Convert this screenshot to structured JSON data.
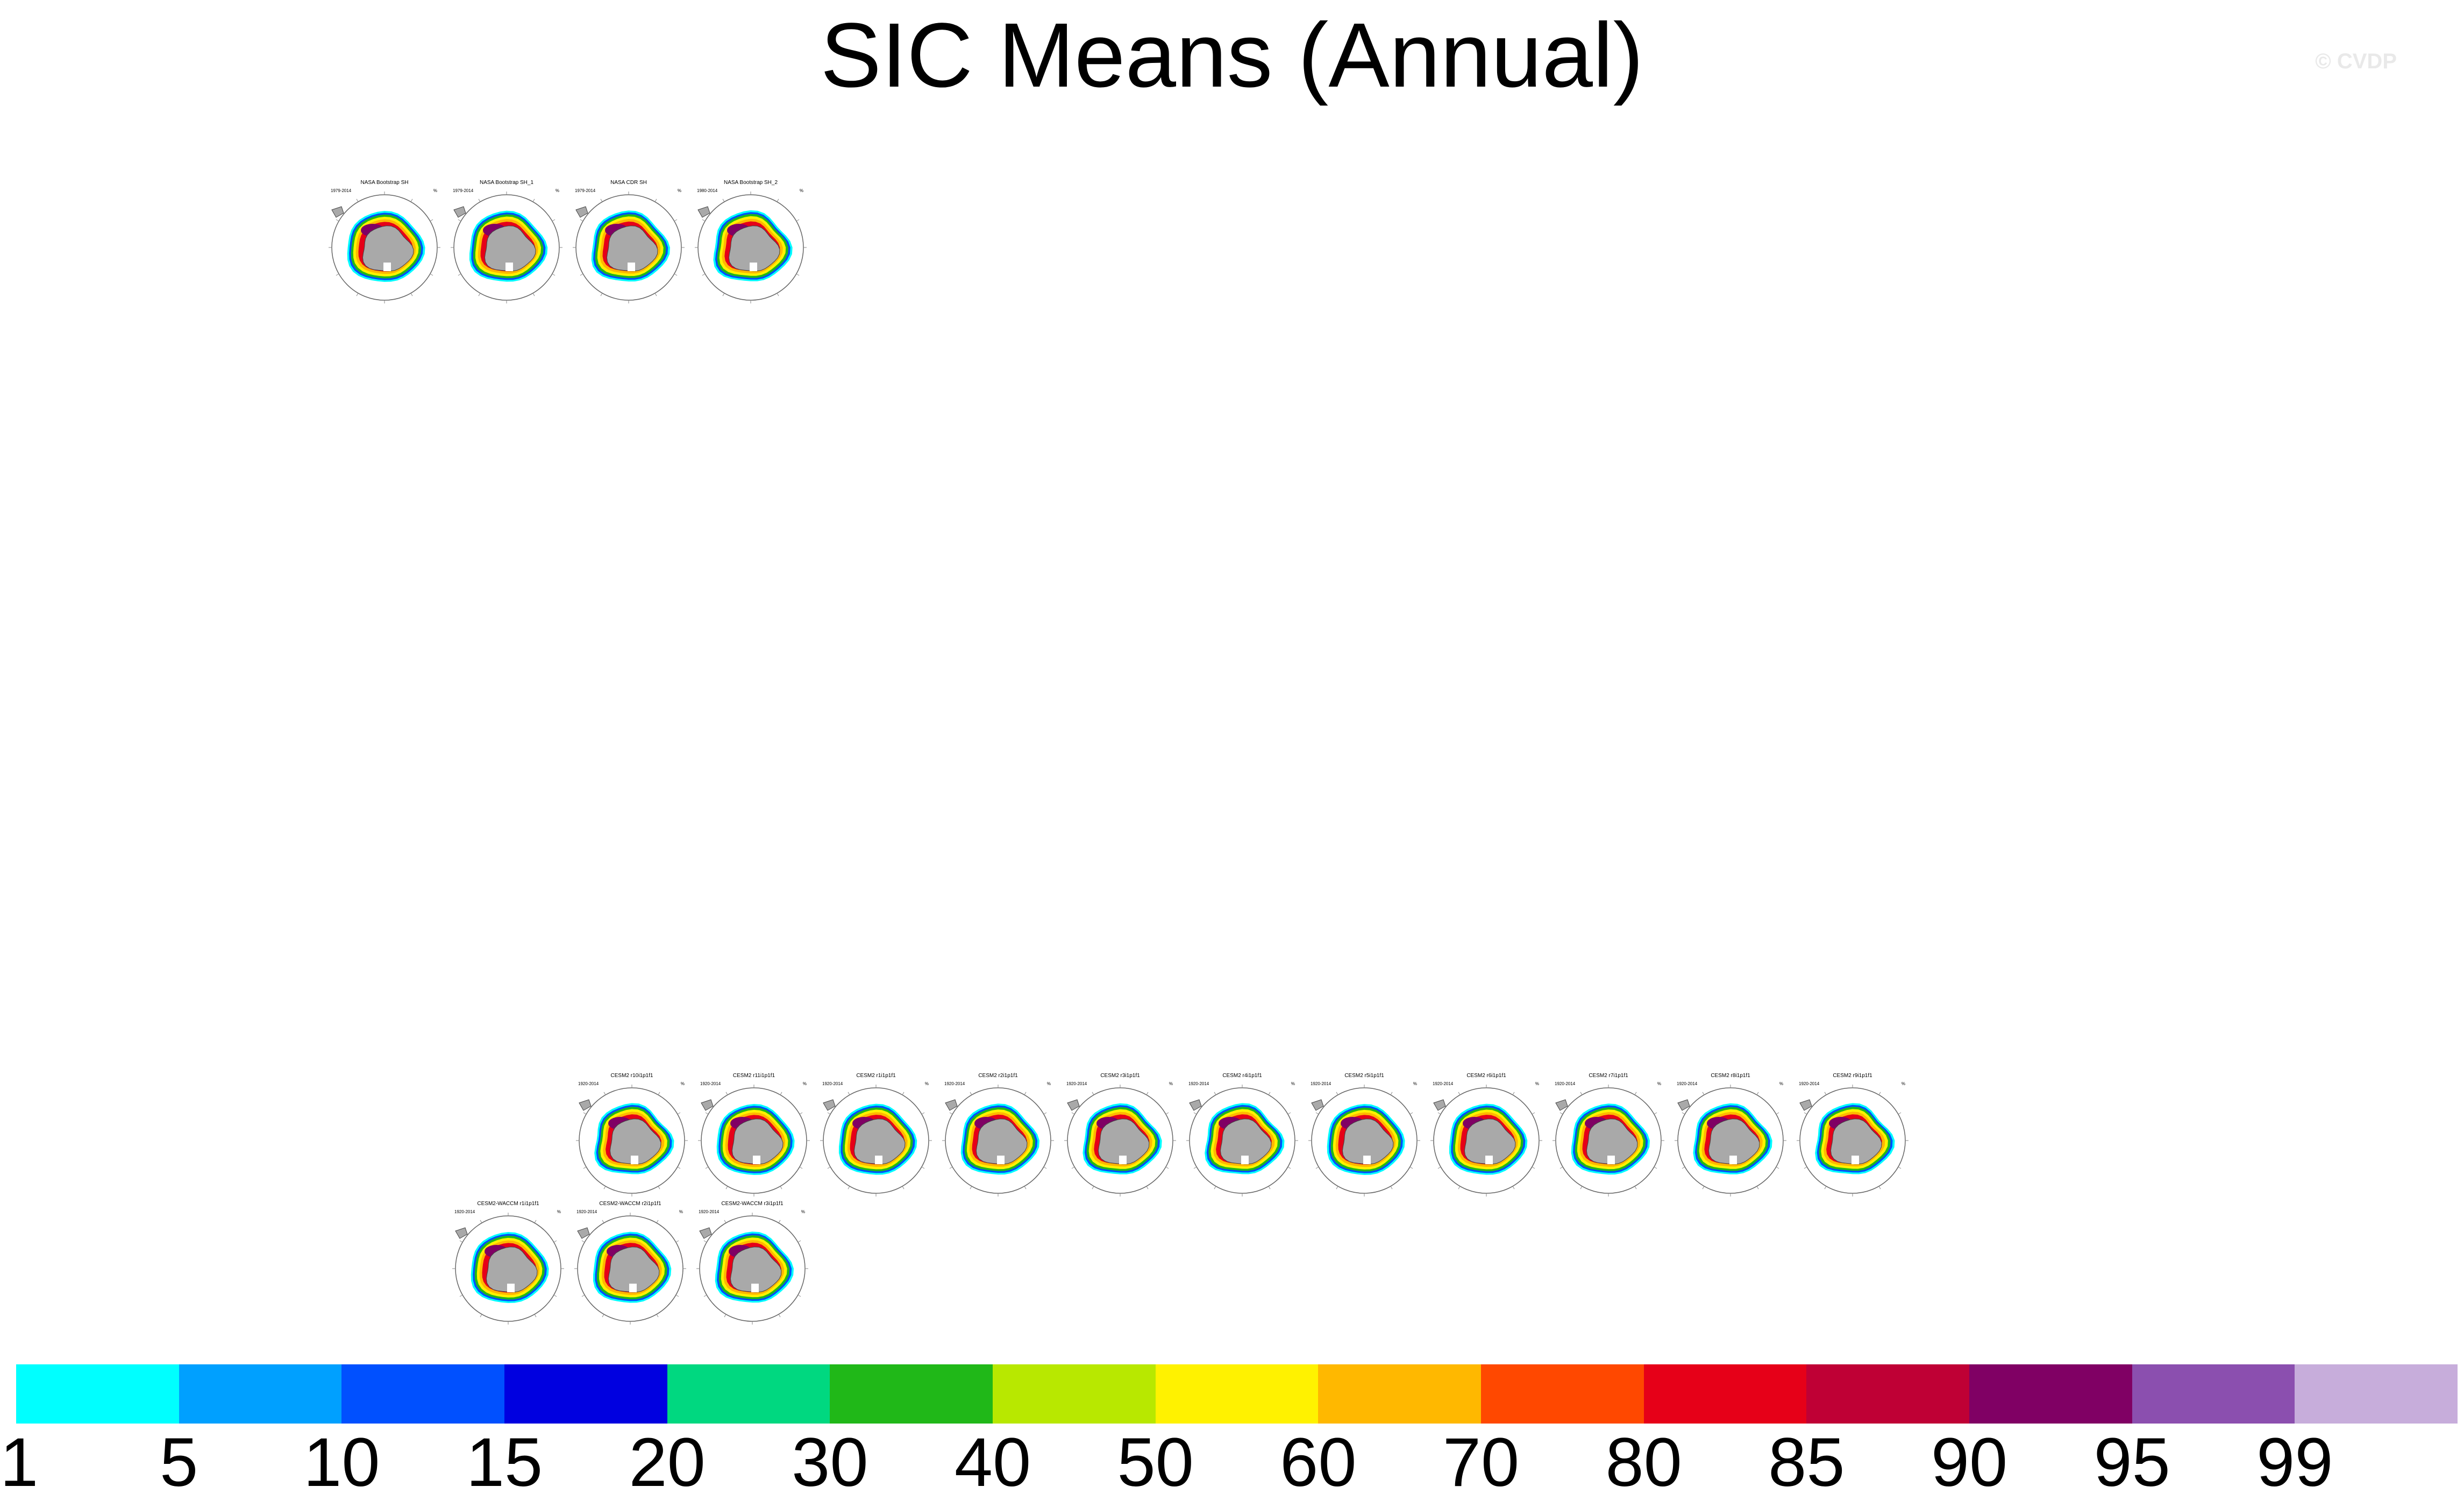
{
  "title": "SIC Means (Annual)",
  "credit": "© CVDP",
  "units": "%",
  "chart_data": {
    "type": "heatmap",
    "title": "SIC Means (Annual)",
    "projection": "south polar stereographic",
    "panels": [
      {
        "name": "NASA Bootstrap SH",
        "period": "1979-2014",
        "row": 0,
        "col": 0
      },
      {
        "name": "NASA Bootstrap SH_1",
        "period": "1979-2014",
        "row": 0,
        "col": 1
      },
      {
        "name": "NASA CDR SH",
        "period": "1979-2014",
        "row": 0,
        "col": 2
      },
      {
        "name": "NASA Bootstrap SH_2",
        "period": "1980-2014",
        "row": 0,
        "col": 3
      },
      {
        "name": "CESM2 r10i1p1f1",
        "period": "1920-2014",
        "row": 1,
        "col": 0
      },
      {
        "name": "CESM2 r11i1p1f1",
        "period": "1920-2014",
        "row": 1,
        "col": 1
      },
      {
        "name": "CESM2 r1i1p1f1",
        "period": "1920-2014",
        "row": 1,
        "col": 2
      },
      {
        "name": "CESM2 r2i1p1f1",
        "period": "1920-2014",
        "row": 1,
        "col": 3
      },
      {
        "name": "CESM2 r3i1p1f1",
        "period": "1920-2014",
        "row": 1,
        "col": 4
      },
      {
        "name": "CESM2 r4i1p1f1",
        "period": "1920-2014",
        "row": 1,
        "col": 5
      },
      {
        "name": "CESM2 r5i1p1f1",
        "period": "1920-2014",
        "row": 1,
        "col": 6
      },
      {
        "name": "CESM2 r6i1p1f1",
        "period": "1920-2014",
        "row": 1,
        "col": 7
      },
      {
        "name": "CESM2 r7i1p1f1",
        "period": "1920-2014",
        "row": 1,
        "col": 8
      },
      {
        "name": "CESM2 r8i1p1f1",
        "period": "1920-2014",
        "row": 1,
        "col": 9
      },
      {
        "name": "CESM2 r9i1p1f1",
        "period": "1920-2014",
        "row": 1,
        "col": 10
      },
      {
        "name": "CESM2-WACCM r1i1p1f1",
        "period": "1920-2014",
        "row": 2,
        "col": 0
      },
      {
        "name": "CESM2-WACCM r2i1p1f1",
        "period": "1920-2014",
        "row": 2,
        "col": 1
      },
      {
        "name": "CESM2-WACCM r3i1p1f1",
        "period": "1920-2014",
        "row": 2,
        "col": 2
      }
    ],
    "colorbar": {
      "levels": [
        "1",
        "5",
        "10",
        "15",
        "20",
        "30",
        "40",
        "50",
        "60",
        "70",
        "80",
        "85",
        "90",
        "95",
        "99"
      ],
      "colors": [
        "#00ffff",
        "#00a0ff",
        "#0050ff",
        "#0000e0",
        "#00d880",
        "#20b818",
        "#b8e800",
        "#fff200",
        "#ffb800",
        "#ff4800",
        "#e60018",
        "#bf0035",
        "#800064",
        "#8b4faf",
        "#c7addb"
      ]
    }
  }
}
